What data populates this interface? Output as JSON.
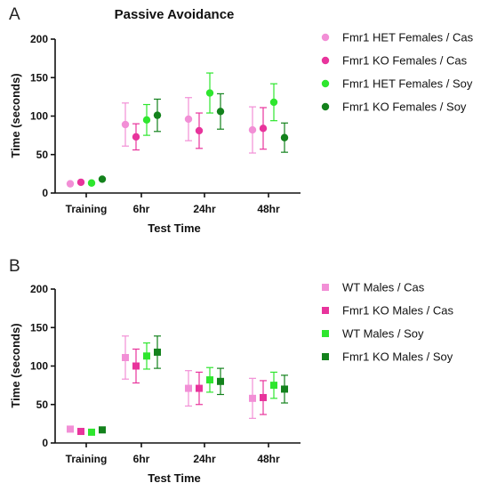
{
  "panels": [
    {
      "letter": "A",
      "title": "Passive Avoidance",
      "marker": "circle",
      "chart_data": {
        "type": "scatter",
        "title": "Passive Avoidance",
        "xlabel": "Test Time",
        "ylabel": "Time (seconds)",
        "categories": [
          "Training",
          "6hr",
          "24hr",
          "48hr"
        ],
        "ylim": [
          0,
          200
        ],
        "yticks": [
          0,
          50,
          100,
          150,
          200
        ],
        "legend_position": "right",
        "series": [
          {
            "name": "Fmr1 HET Females / Cas",
            "color": "#f28fd6",
            "values": [
              12,
              89,
              96,
              82
            ],
            "err": [
              0,
              28,
              28,
              30
            ]
          },
          {
            "name": "Fmr1 KO Females / Cas",
            "color": "#e8349c",
            "values": [
              14,
              73,
              81,
              84
            ],
            "err": [
              0,
              17,
              23,
              27
            ]
          },
          {
            "name": "Fmr1 HET Females / Soy",
            "color": "#2ee62e",
            "values": [
              13,
              95,
              130,
              118
            ],
            "err": [
              0,
              20,
              26,
              24
            ]
          },
          {
            "name": "Fmr1 KO Females / Soy",
            "color": "#13821c",
            "values": [
              18,
              101,
              106,
              72
            ],
            "err": [
              0,
              21,
              23,
              19
            ]
          }
        ]
      }
    },
    {
      "letter": "B",
      "title": "",
      "marker": "square",
      "chart_data": {
        "type": "scatter",
        "title": "",
        "xlabel": "Test Time",
        "ylabel": "Time (seconds)",
        "categories": [
          "Training",
          "6hr",
          "24hr",
          "48hr"
        ],
        "ylim": [
          0,
          200
        ],
        "yticks": [
          0,
          50,
          100,
          150,
          200
        ],
        "legend_position": "right",
        "series": [
          {
            "name": "WT Males / Cas",
            "color": "#f28fd6",
            "values": [
              18,
              111,
              71,
              58
            ],
            "err": [
              0,
              28,
              23,
              26
            ]
          },
          {
            "name": "Fmr1 KO Males / Cas",
            "color": "#e8349c",
            "values": [
              15,
              100,
              71,
              59
            ],
            "err": [
              0,
              22,
              21,
              22
            ]
          },
          {
            "name": "WT Males / Soy",
            "color": "#2ee62e",
            "values": [
              14,
              113,
              82,
              75
            ],
            "err": [
              0,
              17,
              16,
              17
            ]
          },
          {
            "name": "Fmr1 KO Males / Soy",
            "color": "#13821c",
            "values": [
              17,
              118,
              80,
              70
            ],
            "err": [
              0,
              21,
              17,
              18
            ]
          }
        ]
      }
    }
  ]
}
